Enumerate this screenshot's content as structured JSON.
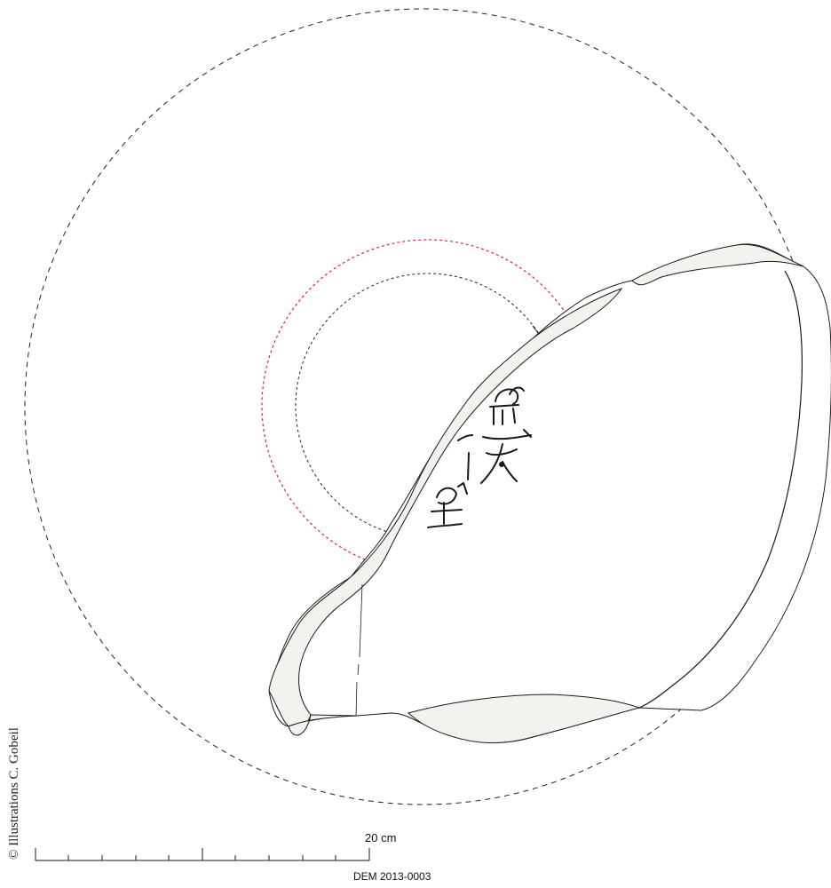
{
  "credit": "© Illustrations C. Gobeil",
  "scale_bar": {
    "label": "20 cm",
    "length_cm": 20,
    "major_ticks": 2,
    "minor_ticks_per_major": 4
  },
  "object_id": "DEM 2013-0003",
  "colors": {
    "outline": "#1a1a1a",
    "section_fill": "#f4f2ee",
    "reconstruction_red": "#e8262b",
    "dashed_black": "#222222"
  }
}
